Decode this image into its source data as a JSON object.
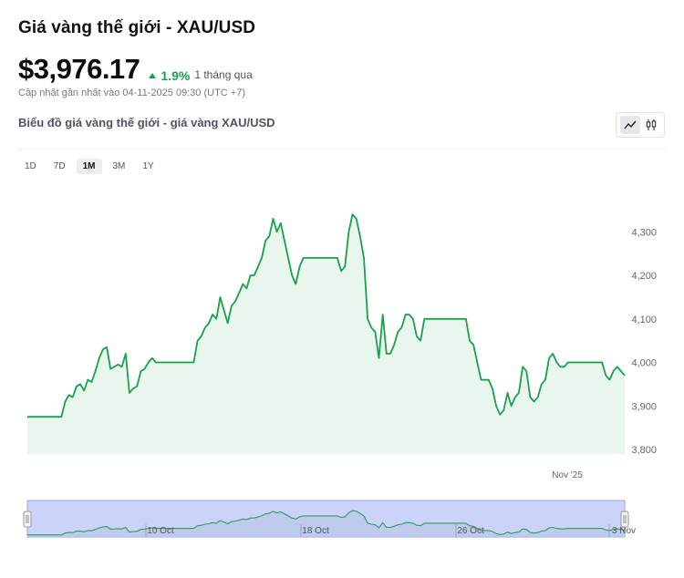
{
  "header": {
    "title": "Giá vàng thế giới - XAU/USD",
    "price": "$3,976.17",
    "change": "1.9%",
    "change_period": "1 tháng qua",
    "updated": "Cập nhật gần nhất vào 04-11-2025 09:30 (UTC +7)",
    "subtitle": "Biểu đồ giá vàng thế giới - giá vàng XAU/USD"
  },
  "view_toggle": {
    "line_icon": "line-chart-icon",
    "candle_icon": "candlestick-icon",
    "active": "line"
  },
  "ranges": [
    {
      "label": "1D",
      "active": false
    },
    {
      "label": "7D",
      "active": false
    },
    {
      "label": "1M",
      "active": true
    },
    {
      "label": "3M",
      "active": false
    },
    {
      "label": "1Y",
      "active": false
    }
  ],
  "colors": {
    "line": "#16a34a",
    "area": "#e9f6ed",
    "navigator_bg": "#ccd3fb",
    "navigator_border": "#97a3f5",
    "up": "#16a34a"
  },
  "chart_data": {
    "type": "area",
    "ylim": [
      3790,
      4350
    ],
    "y_ticks": [
      3800,
      3900,
      4000,
      4100,
      4200,
      4300
    ],
    "y_tick_labels": [
      "3,800",
      "3,900",
      "4,000",
      "4,100",
      "4,200",
      "4,300"
    ],
    "x_tick_labels": [
      "Nov '25"
    ],
    "grid": false,
    "series": [
      {
        "values": [
          3875,
          3875,
          3875,
          3875,
          3875,
          3875,
          3875,
          3875,
          3875,
          3875,
          3910,
          3925,
          3920,
          3945,
          3950,
          3935,
          3960,
          3955,
          3980,
          4010,
          4030,
          4035,
          3985,
          3990,
          3995,
          3990,
          4020,
          3930,
          3940,
          3945,
          3980,
          3985,
          4000,
          4010,
          4000,
          4000,
          4000,
          4000,
          4000,
          4000,
          4000,
          4000,
          4000,
          4000,
          4000,
          4050,
          4060,
          4080,
          4090,
          4110,
          4100,
          4150,
          4120,
          4090,
          4130,
          4140,
          4160,
          4180,
          4170,
          4200,
          4200,
          4220,
          4240,
          4280,
          4290,
          4330,
          4300,
          4320,
          4280,
          4240,
          4200,
          4180,
          4220,
          4240,
          4240,
          4240,
          4240,
          4240,
          4240,
          4240,
          4240,
          4240,
          4240,
          4210,
          4220,
          4300,
          4340,
          4330,
          4290,
          4240,
          4100,
          4080,
          4070,
          4010,
          4110,
          4020,
          4020,
          4040,
          4070,
          4080,
          4110,
          4110,
          4100,
          4060,
          4050,
          4100,
          4100,
          4100,
          4100,
          4100,
          4100,
          4100,
          4100,
          4100,
          4100,
          4100,
          4100,
          4050,
          4040,
          4000,
          3960,
          3960,
          3960,
          3940,
          3900,
          3880,
          3890,
          3930,
          3900,
          3920,
          3930,
          3990,
          3980,
          3920,
          3910,
          3920,
          3950,
          3960,
          4010,
          4020,
          4000,
          3990,
          3990,
          4000,
          4000,
          4000,
          4000,
          4000,
          4000,
          4000,
          4000,
          4000,
          4000,
          3970,
          3960,
          3980,
          3990,
          3980,
          3970
        ]
      }
    ]
  },
  "navigator": {
    "labels": [
      "10 Oct",
      "18 Oct",
      "26 Oct",
      "3 Nov"
    ]
  }
}
